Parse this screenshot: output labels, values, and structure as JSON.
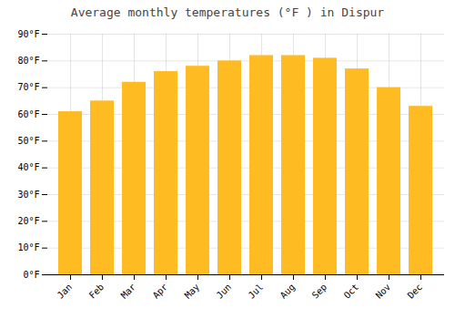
{
  "chart_data": {
    "type": "bar",
    "title": "Average monthly temperatures (°F ) in Dispur",
    "categories": [
      "Jan",
      "Feb",
      "Mar",
      "Apr",
      "May",
      "Jun",
      "Jul",
      "Aug",
      "Sep",
      "Oct",
      "Nov",
      "Dec"
    ],
    "values": [
      61,
      65,
      72,
      76,
      78,
      80,
      82,
      82,
      81,
      77,
      70,
      63
    ],
    "color": "#FFBB22",
    "ylim": [
      0,
      90
    ],
    "yticks": [
      {
        "value": 0,
        "label": "0°F"
      },
      {
        "value": 10,
        "label": "10°F"
      },
      {
        "value": 20,
        "label": "20°F"
      },
      {
        "value": 30,
        "label": "30°F"
      },
      {
        "value": 40,
        "label": "40°F"
      },
      {
        "value": 50,
        "label": "50°F"
      },
      {
        "value": 60,
        "label": "60°F"
      },
      {
        "value": 70,
        "label": "70°F"
      },
      {
        "value": 80,
        "label": "80°F"
      },
      {
        "value": 90,
        "label": "90°F"
      }
    ],
    "grid": true
  }
}
